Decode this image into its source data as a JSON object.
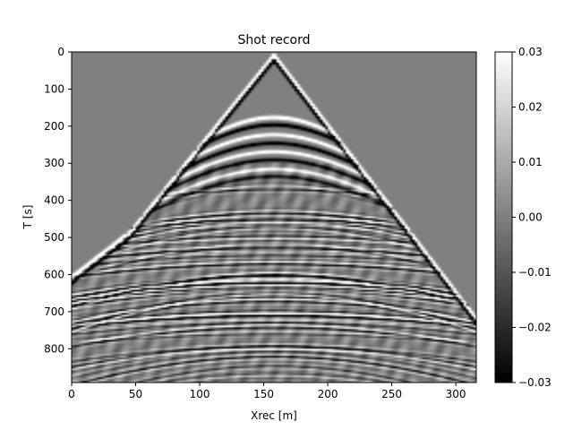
{
  "chart_data": {
    "type": "heatmap",
    "title": "Shot record",
    "xlabel": "Xrec [m]",
    "ylabel": "T [s]",
    "xlim": [
      0,
      316
    ],
    "ylim": [
      891,
      0
    ],
    "x_ticks": [
      "0",
      "50",
      "100",
      "150",
      "200",
      "250",
      "300"
    ],
    "x_tick_values": [
      0,
      50,
      100,
      150,
      200,
      250,
      300
    ],
    "y_ticks": [
      "0",
      "100",
      "200",
      "300",
      "400",
      "500",
      "600",
      "700",
      "800"
    ],
    "y_tick_values": [
      0,
      100,
      200,
      300,
      400,
      500,
      600,
      700,
      800
    ],
    "colormap": "gray",
    "vmin": -0.03,
    "vmax": 0.03,
    "colorbar_ticks": [
      "0.03",
      "0.02",
      "0.01",
      "0.00",
      "−0.01",
      "−0.02",
      "−0.03"
    ],
    "colorbar_tick_values": [
      0.03,
      0.02,
      0.01,
      0.0,
      -0.01,
      -0.02,
      -0.03
    ],
    "source_x": 158,
    "direct_wave": {
      "apex_time": 0,
      "kink_x_left": 45,
      "kink_x_right": 265,
      "kink_time": 480,
      "time_at_x0": 600,
      "time_at_xmax": 710
    },
    "reflections": [
      {
        "apex_time": 175,
        "polarity": 1
      },
      {
        "apex_time": 195,
        "polarity": -1
      },
      {
        "apex_time": 222,
        "polarity": 1
      },
      {
        "apex_time": 245,
        "polarity": -1
      },
      {
        "apex_time": 268,
        "polarity": 1
      },
      {
        "apex_time": 290,
        "polarity": -1
      },
      {
        "apex_time": 315,
        "polarity": 1
      },
      {
        "apex_time": 335,
        "polarity": -1
      }
    ]
  }
}
